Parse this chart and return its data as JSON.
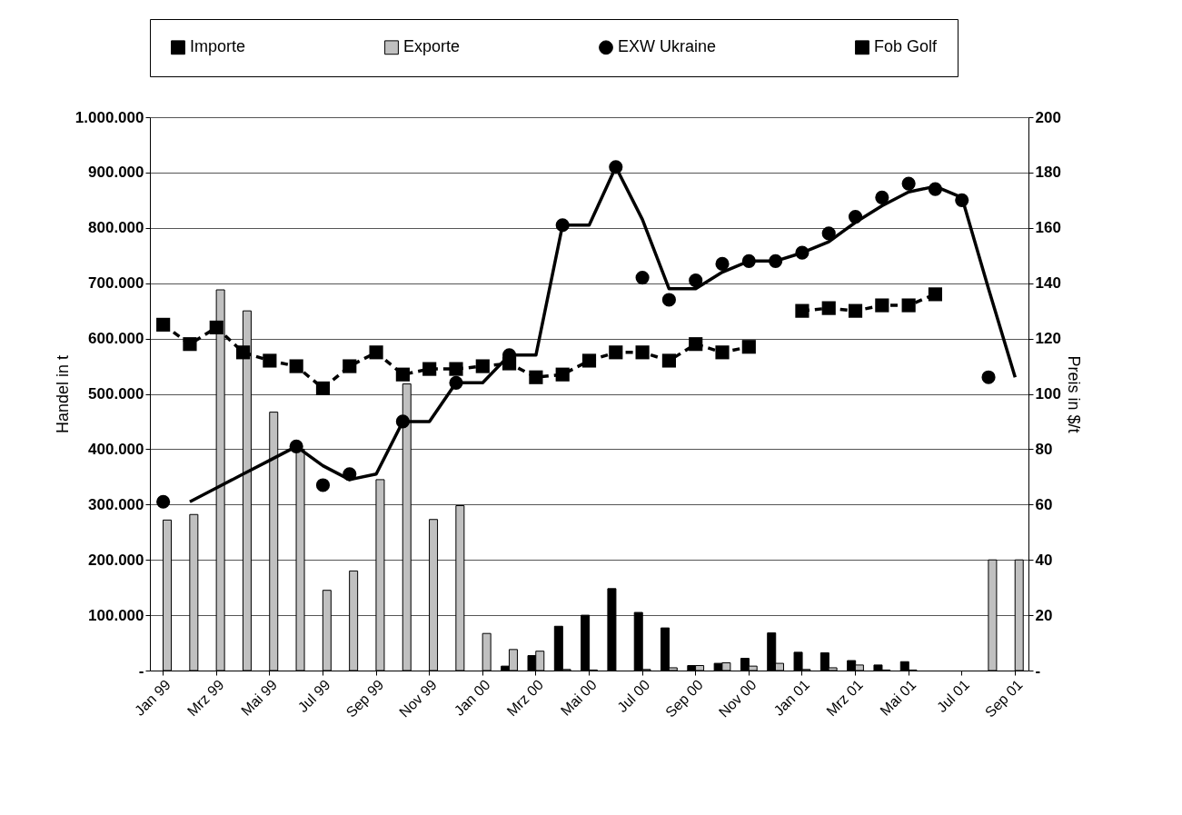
{
  "chart_data": {
    "type": "bar",
    "ylabel": "Handel in t",
    "y2label": "Preis in $/t",
    "categories": [
      "Jan 99",
      null,
      "Mrz 99",
      null,
      "Mai 99",
      null,
      "Jul 99",
      null,
      "Sep 99",
      null,
      "Nov 99",
      null,
      "Jan 00",
      null,
      "Mrz 00",
      null,
      "Mai 00",
      null,
      "Jul 00",
      null,
      "Sep 00",
      null,
      "Nov 00",
      null,
      "Jan 01",
      null,
      "Mrz 01",
      null,
      "Mai 01",
      null,
      "Jul 01",
      null,
      "Sep 01"
    ],
    "series": [
      {
        "name": "Importe",
        "color": "#000000",
        "values": [
          null,
          null,
          null,
          null,
          null,
          null,
          null,
          null,
          null,
          null,
          null,
          null,
          null,
          8000,
          27000,
          80000,
          100000,
          148000,
          105000,
          77000,
          9000,
          13000,
          22000,
          68000,
          33000,
          32000,
          18000,
          10000,
          16000,
          null,
          null,
          null,
          null
        ]
      },
      {
        "name": "Exporte",
        "color": "#c0c0c0",
        "values": [
          272000,
          282000,
          688000,
          650000,
          467000,
          400000,
          145000,
          180000,
          345000,
          518000,
          273000,
          298000,
          67000,
          38000,
          35000,
          2000,
          1000,
          null,
          2000,
          5000,
          9000,
          14000,
          8000,
          13000,
          2000,
          5000,
          10000,
          1000,
          1000,
          null,
          null,
          200000,
          200000
        ]
      },
      {
        "type": "line",
        "axis": "y2",
        "color": "#000000",
        "marker": "none",
        "line_style": "solid",
        "values": [
          null,
          61,
          66,
          71,
          76,
          81,
          74,
          69,
          71,
          90,
          90,
          104,
          104,
          114,
          114,
          161,
          161,
          182,
          163,
          138,
          138,
          144,
          148,
          148,
          151,
          155,
          162,
          168,
          173,
          175,
          171,
          138,
          106
        ]
      },
      {
        "name": "EXW Ukraine",
        "type": "scatter",
        "axis": "y2",
        "color": "#000000",
        "marker": "circle",
        "values": [
          61,
          null,
          null,
          null,
          null,
          81,
          67,
          71,
          null,
          90,
          null,
          104,
          null,
          114,
          null,
          161,
          null,
          182,
          142,
          134,
          141,
          147,
          148,
          148,
          151,
          158,
          164,
          171,
          176,
          174,
          170,
          106,
          null
        ]
      },
      {
        "name": "Fob Golf",
        "type": "line",
        "axis": "y2",
        "color": "#000000",
        "marker": "square",
        "line_style": "dashed",
        "values": [
          125,
          118,
          124,
          115,
          112,
          110,
          102,
          110,
          115,
          107,
          109,
          109,
          110,
          111,
          106,
          107,
          112,
          115,
          115,
          112,
          118,
          115,
          117,
          null,
          130,
          131,
          130,
          132,
          132,
          136,
          null,
          null,
          null
        ]
      }
    ],
    "ylim": [
      0,
      1000000
    ],
    "yticks": [
      {
        "value": 0,
        "label": "-"
      },
      {
        "value": 100000,
        "label": "100.000"
      },
      {
        "value": 200000,
        "label": "200.000"
      },
      {
        "value": 300000,
        "label": "300.000"
      },
      {
        "value": 400000,
        "label": "400.000"
      },
      {
        "value": 500000,
        "label": "500.000"
      },
      {
        "value": 600000,
        "label": "600.000"
      },
      {
        "value": 700000,
        "label": "700.000"
      },
      {
        "value": 800000,
        "label": "800.000"
      },
      {
        "value": 900000,
        "label": "900.000"
      },
      {
        "value": 1000000,
        "label": "1.000.000"
      }
    ],
    "y2lim": [
      0,
      200
    ],
    "y2ticks": [
      {
        "value": 0,
        "label": "-"
      },
      20,
      40,
      60,
      80,
      100,
      120,
      140,
      160,
      180,
      200
    ],
    "grid": "y",
    "legend": "top"
  }
}
